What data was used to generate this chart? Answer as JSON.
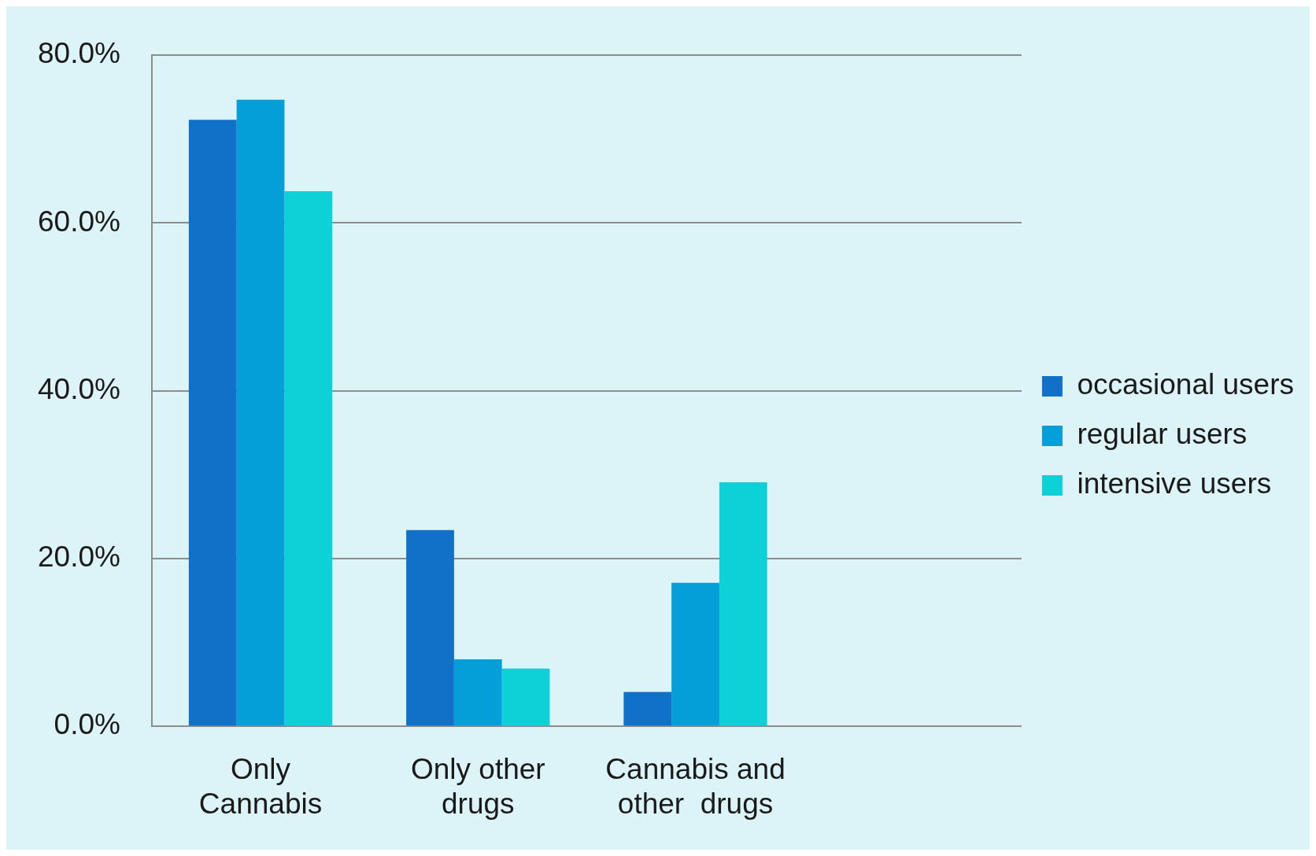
{
  "chart_data": {
    "type": "bar",
    "categories": [
      "Only Cannabis",
      "Only other drugs",
      "Cannabis and other  drugs",
      null
    ],
    "series": [
      {
        "name": "occasional users",
        "color": "#1170c8",
        "values": [
          72.3,
          23.4,
          4.1,
          null
        ]
      },
      {
        "name": "regular users",
        "color": "#049ed9",
        "values": [
          74.7,
          8.0,
          17.1,
          null
        ]
      },
      {
        "name": "intensive users",
        "color": "#0ed1d8",
        "values": [
          63.8,
          6.9,
          29.1,
          null
        ]
      }
    ],
    "ylim": [
      0,
      80
    ],
    "yticks": [
      {
        "value": 0,
        "label": "0.0%"
      },
      {
        "value": 20,
        "label": "20.0%"
      },
      {
        "value": 40,
        "label": "40.0%"
      },
      {
        "value": 60,
        "label": "60.0%"
      },
      {
        "value": 80,
        "label": "80.0%"
      }
    ],
    "grid": "y",
    "legend": "right"
  }
}
